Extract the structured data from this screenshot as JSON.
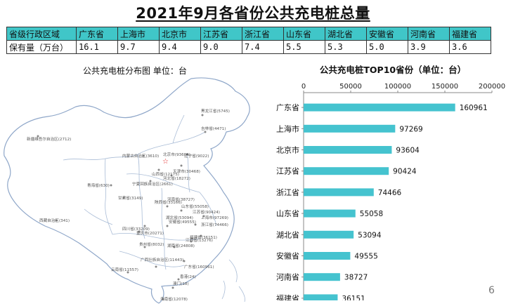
{
  "title": "2021年9月各省份公共充电桩总量",
  "summary_table": {
    "header": [
      "省级行政区域",
      "广东省",
      "上海市",
      "北京市",
      "江苏省",
      "浙江省",
      "山东省",
      "湖北省",
      "安徽省",
      "河南省",
      "福建省"
    ],
    "row": [
      "保有量（万台）",
      "16.1",
      "9.7",
      "9.4",
      "9.0",
      "7.4",
      "5.5",
      "5.3",
      "5.0",
      "3.9",
      "3.6"
    ]
  },
  "map": {
    "title": "公共充电桩分布图   单位：台",
    "labels": [
      "黑龙江省(5745)",
      "吉林省(4471)",
      "新疆维吾尔自治区(2712)",
      "内蒙古自治区(3610)",
      "北京市(93604)",
      "辽宁省(9022)",
      "天津市(30468)",
      "河北省(18272)",
      "山西省(12175)",
      "宁夏回族自治区(2661)",
      "青海省(630)",
      "甘肃省(3149)",
      "陕西省(33166)",
      "山东省(55058)",
      "河南省(38727)",
      "安徽省(49555)",
      "江苏省(90424)",
      "上海市(97269)",
      "浙江省(74466)",
      "湖北省(53094)",
      "四川省(33209)",
      "重庆市(20271)",
      "西藏自治区(341)",
      "贵州省(8032)",
      "湖南省(24808)",
      "江西省(13276)",
      "福建省(36151)",
      "云南省(11557)",
      "广西壮族自治区(11443)",
      "广东省(160961)",
      "香港(24)",
      "澳门(18)",
      "海南省(12078)"
    ]
  },
  "chart_data": {
    "type": "bar",
    "orientation": "horizontal",
    "title": "公共充电桩TOP10省份（单位：台）",
    "categories": [
      "广东省",
      "上海市",
      "北京市",
      "江苏省",
      "浙江省",
      "山东省",
      "湖北省",
      "安徽省",
      "河南省",
      "福建省"
    ],
    "values": [
      160961,
      97269,
      93604,
      90424,
      74466,
      55058,
      53094,
      49555,
      38727,
      36151
    ],
    "xlim": [
      0,
      200000
    ],
    "xticks": [
      "0",
      "50000",
      "100000",
      "150000",
      "200000"
    ],
    "axis_position": "top",
    "grid": false,
    "bar_color": "#45c3cf"
  },
  "page_number": "6"
}
